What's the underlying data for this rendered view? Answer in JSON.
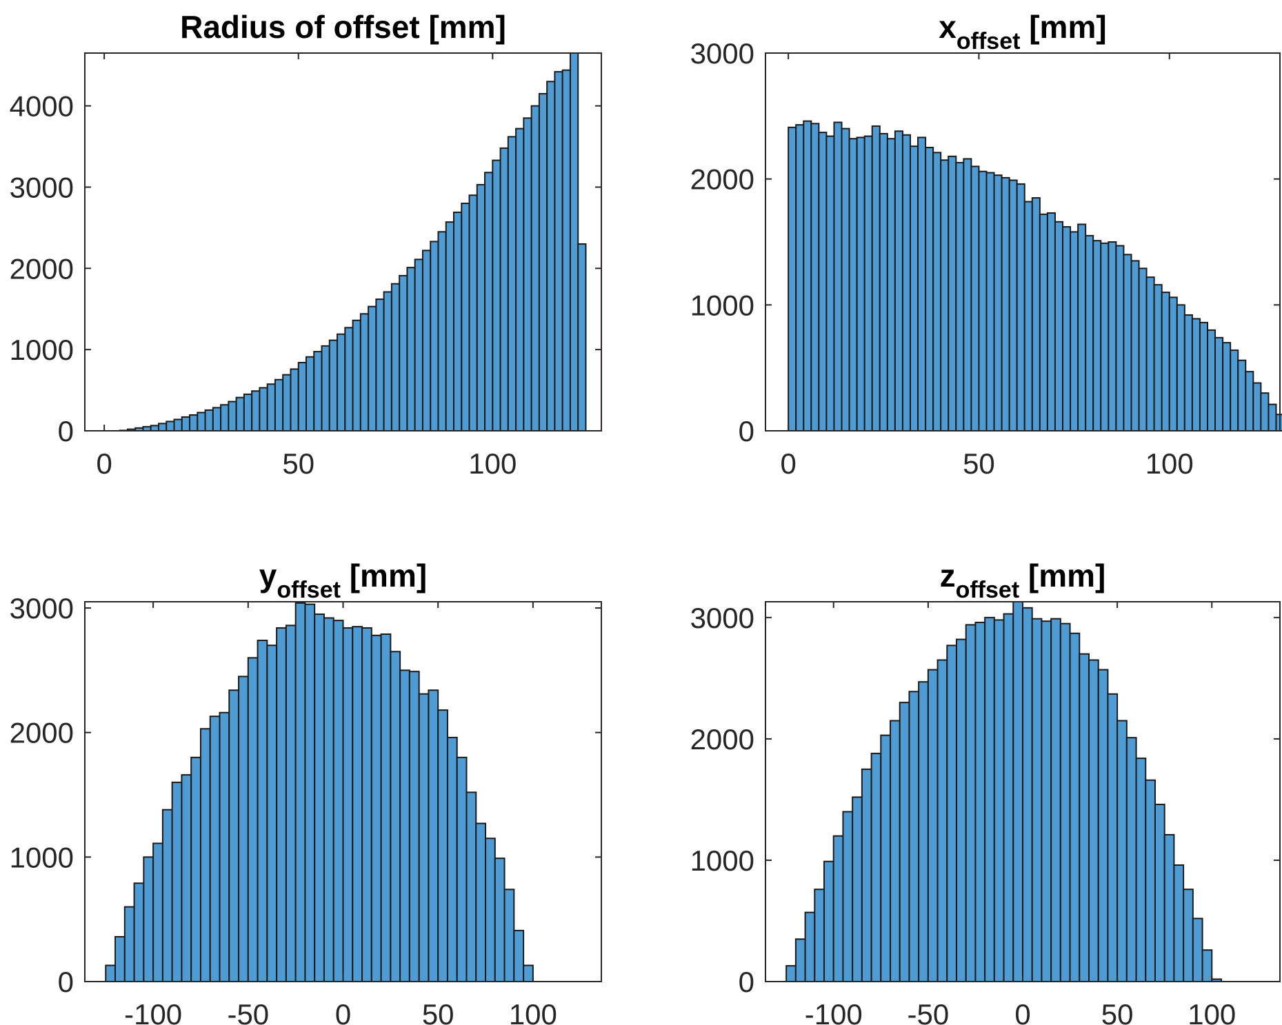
{
  "chart_data": [
    {
      "type": "bar",
      "title": "Radius of offset [mm]",
      "title_sub": "",
      "title_suffix": "",
      "xlim": [
        -5,
        128
      ],
      "ylim": [
        0,
        4650
      ],
      "xticks": [
        0,
        50,
        100
      ],
      "yticks": [
        0,
        1000,
        2000,
        3000,
        4000
      ],
      "bin_edges_start": 0,
      "bin_width": 2,
      "bar_color": "#4f9bd4",
      "values": [
        0,
        0,
        5,
        20,
        35,
        50,
        65,
        90,
        115,
        140,
        170,
        195,
        225,
        255,
        285,
        320,
        360,
        410,
        450,
        490,
        530,
        575,
        630,
        690,
        760,
        840,
        910,
        975,
        1045,
        1115,
        1190,
        1270,
        1360,
        1440,
        1530,
        1620,
        1710,
        1810,
        1910,
        2010,
        2110,
        2220,
        2330,
        2450,
        2570,
        2690,
        2800,
        2900,
        3030,
        3180,
        3330,
        3480,
        3620,
        3720,
        3850,
        4000,
        4150,
        4300,
        4420,
        4440,
        4650,
        2300
      ]
    },
    {
      "type": "bar",
      "title": "x",
      "title_sub": "offset",
      "title_suffix": " [mm]",
      "xlim": [
        -6,
        129
      ],
      "ylim": [
        0,
        3000
      ],
      "xticks": [
        0,
        50,
        100
      ],
      "yticks": [
        0,
        1000,
        2000,
        3000
      ],
      "bin_edges_start": 0,
      "bin_width": 2,
      "bar_color": "#4f9bd4",
      "values": [
        2410,
        2430,
        2460,
        2440,
        2370,
        2340,
        2450,
        2400,
        2320,
        2330,
        2340,
        2420,
        2360,
        2320,
        2380,
        2350,
        2260,
        2330,
        2250,
        2210,
        2150,
        2180,
        2130,
        2160,
        2100,
        2060,
        2050,
        2030,
        2010,
        1990,
        1960,
        1820,
        1850,
        1720,
        1730,
        1660,
        1620,
        1580,
        1640,
        1550,
        1510,
        1490,
        1500,
        1470,
        1400,
        1350,
        1290,
        1220,
        1160,
        1100,
        1060,
        1000,
        920,
        890,
        860,
        800,
        740,
        700,
        640,
        560,
        470,
        380,
        300,
        210,
        130,
        60,
        10
      ]
    },
    {
      "type": "bar",
      "title": "y",
      "title_sub": "offset",
      "title_suffix": " [mm]",
      "xlim": [
        -136,
        136
      ],
      "ylim": [
        0,
        3050
      ],
      "xticks": [
        -100,
        -50,
        0,
        50,
        100
      ],
      "yticks": [
        0,
        1000,
        2000,
        3000
      ],
      "bin_edges_start": -125,
      "bin_width": 5,
      "bar_color": "#4f9bd4",
      "values": [
        130,
        360,
        600,
        790,
        1000,
        1110,
        1380,
        1600,
        1660,
        1800,
        2030,
        2130,
        2160,
        2340,
        2450,
        2600,
        2740,
        2700,
        2840,
        2860,
        3040,
        3030,
        2950,
        2920,
        2900,
        2840,
        2850,
        2840,
        2780,
        2790,
        2650,
        2500,
        2490,
        2310,
        2340,
        2180,
        1960,
        1800,
        1520,
        1270,
        1150,
        990,
        740,
        410,
        130
      ]
    },
    {
      "type": "bar",
      "title": "z",
      "title_sub": "offset",
      "title_suffix": " [mm]",
      "xlim": [
        -136,
        136
      ],
      "ylim": [
        0,
        3130
      ],
      "xticks": [
        -100,
        -50,
        0,
        50,
        100
      ],
      "yticks": [
        0,
        1000,
        2000,
        3000
      ],
      "bin_edges_start": -125,
      "bin_width": 5,
      "bar_color": "#4f9bd4",
      "values": [
        130,
        350,
        570,
        760,
        990,
        1200,
        1400,
        1520,
        1750,
        1880,
        2030,
        2150,
        2300,
        2390,
        2470,
        2570,
        2650,
        2770,
        2820,
        2940,
        2960,
        3000,
        2980,
        3030,
        3130,
        3080,
        2990,
        2970,
        2990,
        2950,
        2870,
        2700,
        2650,
        2570,
        2370,
        2150,
        2010,
        1840,
        1660,
        1460,
        1210,
        960,
        760,
        520,
        260,
        20
      ]
    }
  ]
}
